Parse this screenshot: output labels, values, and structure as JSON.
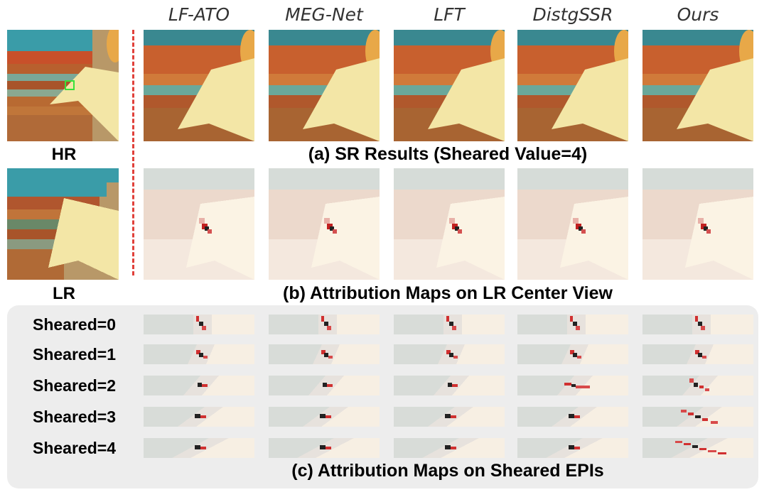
{
  "figure": {
    "methods": [
      "LF-ATO",
      "MEG-Net",
      "LFT",
      "DistgSSR",
      "Ours"
    ],
    "hr_label": "HR",
    "lr_label": "LR",
    "caption_a": "(a) SR Results (Sheared Value=4)",
    "caption_b": "(b) Attribution Maps on LR Center View",
    "caption_c": "(c) Attribution Maps on Sheared EPIs",
    "sheared_labels": [
      "Sheared=0",
      "Sheared=1",
      "Sheared=2",
      "Sheared=3",
      "Sheared=4"
    ]
  }
}
